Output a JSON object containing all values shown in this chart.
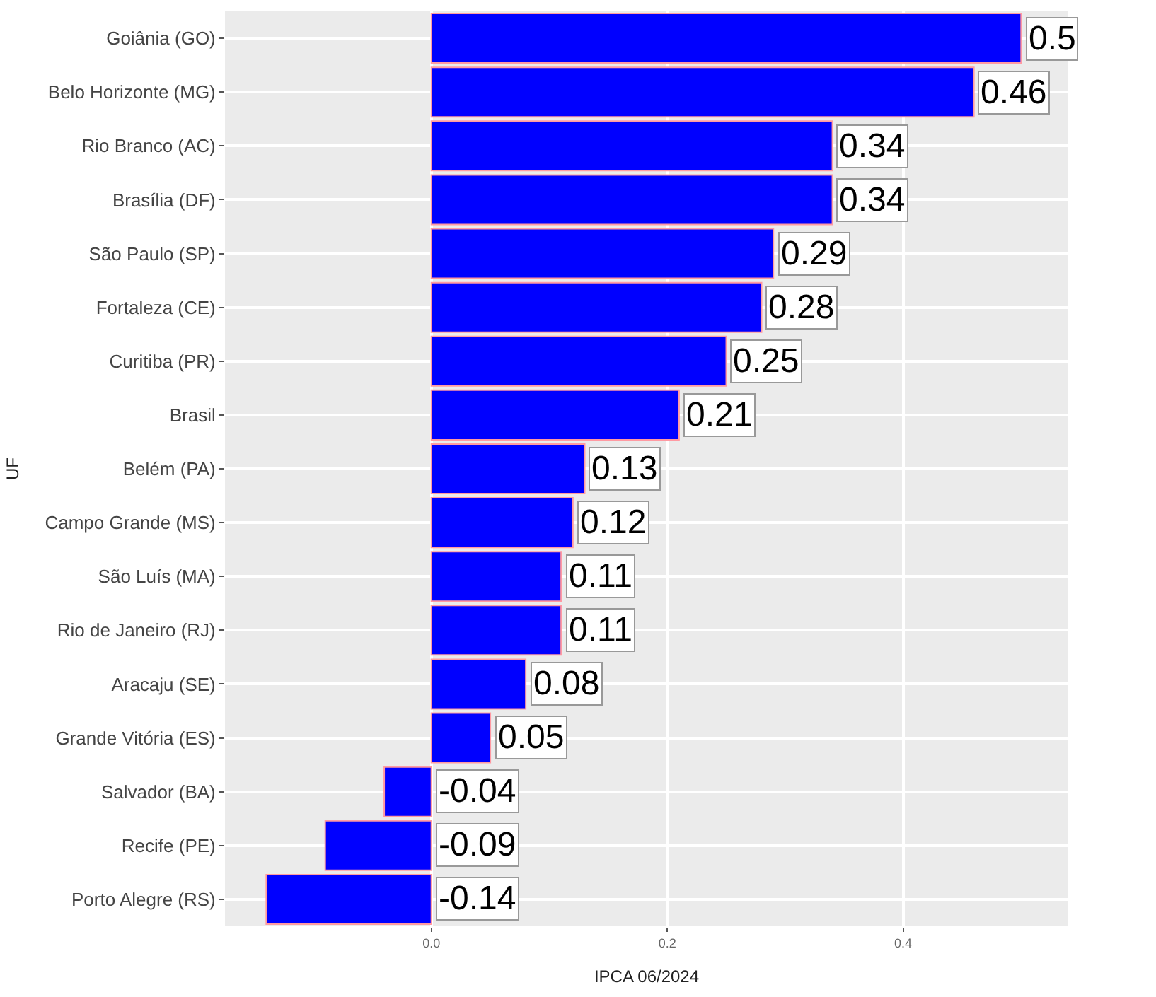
{
  "chart_data": {
    "type": "bar",
    "orientation": "horizontal",
    "xlabel": "IPCA 06/2024",
    "ylabel": "UF",
    "categories": [
      "Goiânia (GO)",
      "Belo Horizonte (MG)",
      "Rio Branco (AC)",
      "Brasília (DF)",
      "São Paulo (SP)",
      "Fortaleza (CE)",
      "Curitiba (PR)",
      "Brasil",
      "Belém (PA)",
      "Campo Grande (MS)",
      "São Luís (MA)",
      "Rio de Janeiro (RJ)",
      "Aracaju (SE)",
      "Grande Vitória (ES)",
      "Salvador (BA)",
      "Recife (PE)",
      "Porto Alegre (RS)"
    ],
    "values": [
      0.5,
      0.46,
      0.34,
      0.34,
      0.29,
      0.28,
      0.25,
      0.21,
      0.13,
      0.12,
      0.11,
      0.11,
      0.08,
      0.05,
      -0.04,
      -0.09,
      -0.14
    ],
    "value_labels": [
      "0.5",
      "0.46",
      "0.34",
      "0.34",
      "0.29",
      "0.28",
      "0.25",
      "0.21",
      "0.13",
      "0.12",
      "0.11",
      "0.11",
      "0.08",
      "0.05",
      "-0.04",
      "-0.09",
      "-0.14"
    ],
    "color": "#0000ff",
    "xlim": [
      -0.175,
      0.54
    ],
    "xticks": [
      {
        "value": 0,
        "label": "0.0"
      },
      {
        "value": 0.2,
        "label": "0.2"
      },
      {
        "value": 0.4,
        "label": "0.4"
      }
    ],
    "grid": true,
    "legend": false
  }
}
